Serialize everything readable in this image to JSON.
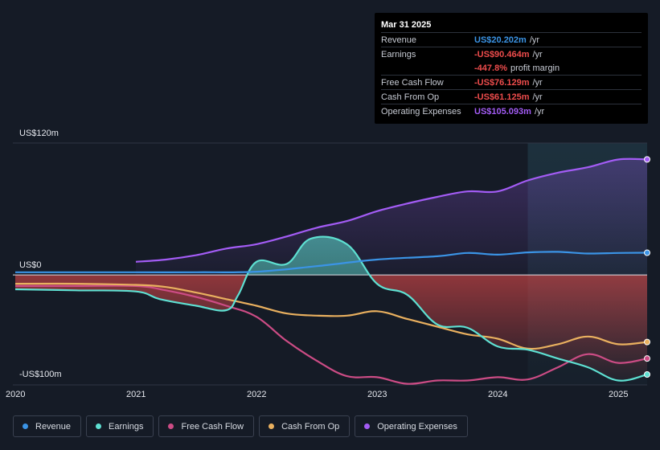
{
  "tooltip": {
    "date": "Mar 31 2025",
    "rows": [
      {
        "label": "Revenue",
        "value": "US$20.202m",
        "unit": "/yr"
      },
      {
        "label": "Earnings",
        "value": "-US$90.464m",
        "unit": "/yr"
      },
      {
        "label": "",
        "value": "-447.8%",
        "unit": "profit margin"
      },
      {
        "label": "Free Cash Flow",
        "value": "-US$76.129m",
        "unit": "/yr"
      },
      {
        "label": "Cash From Op",
        "value": "-US$61.125m",
        "unit": "/yr"
      },
      {
        "label": "Operating Expenses",
        "value": "US$105.093m",
        "unit": "/yr"
      }
    ]
  },
  "colors": {
    "revenue": "#3b94e6",
    "earnings": "#5ee0d2",
    "free_cash_flow": "#cc4c85",
    "cash_from_op": "#e9b05f",
    "operating_expenses": "#a35cf5",
    "negative": "#ee4c4c"
  },
  "chart_data": {
    "type": "line",
    "title": "",
    "xlabel": "",
    "ylabel": "",
    "ylim": [
      -100,
      120
    ],
    "y_tick_labels": [
      "US$120m",
      "US$0",
      "-US$100m"
    ],
    "x_tick_labels": [
      "2020",
      "2021",
      "2022",
      "2023",
      "2024",
      "2025"
    ],
    "x_range": [
      2019.98,
      2025.24
    ],
    "highlight_start": 2024.25,
    "series": [
      {
        "name": "Revenue",
        "key": "revenue",
        "x": [
          2020.0,
          2020.5,
          2021.0,
          2021.5,
          2022.0,
          2022.5,
          2023.0,
          2023.5,
          2023.75,
          2024.0,
          2024.25,
          2024.5,
          2024.75,
          2025.0,
          2025.24
        ],
        "y": [
          2.5,
          2.5,
          2.5,
          2.5,
          3.0,
          8.0,
          14.0,
          17.0,
          20.0,
          18.5,
          20.5,
          21.0,
          19.5,
          20.0,
          20.2
        ]
      },
      {
        "name": "Earnings",
        "key": "earnings",
        "x": [
          2020.0,
          2020.5,
          2021.0,
          2021.2,
          2021.5,
          2021.75,
          2021.85,
          2022.0,
          2022.25,
          2022.45,
          2022.75,
          2023.0,
          2023.25,
          2023.5,
          2023.75,
          2024.0,
          2024.25,
          2024.5,
          2024.75,
          2025.0,
          2025.24
        ],
        "y": [
          -13,
          -14,
          -15,
          -22,
          -28,
          -32,
          -18,
          12,
          10,
          33,
          28,
          -8,
          -18,
          -45,
          -48,
          -65,
          -68,
          -76,
          -84,
          -96,
          -90.5
        ]
      },
      {
        "name": "Free Cash Flow",
        "key": "free_cash_flow",
        "x": [
          2020.0,
          2020.5,
          2021.0,
          2021.25,
          2021.5,
          2021.75,
          2022.0,
          2022.25,
          2022.5,
          2022.75,
          2023.0,
          2023.25,
          2023.5,
          2023.75,
          2024.0,
          2024.25,
          2024.5,
          2024.75,
          2025.0,
          2025.24
        ],
        "y": [
          -10,
          -10,
          -10,
          -14,
          -20,
          -28,
          -38,
          -60,
          -78,
          -92,
          -93,
          -99,
          -96,
          -96,
          -93,
          -95,
          -84,
          -72,
          -80,
          -76
        ]
      },
      {
        "name": "Cash From Op",
        "key": "cash_from_op",
        "x": [
          2020.0,
          2020.5,
          2021.0,
          2021.25,
          2021.5,
          2021.75,
          2022.0,
          2022.25,
          2022.5,
          2022.75,
          2023.0,
          2023.25,
          2023.5,
          2023.75,
          2024.0,
          2024.25,
          2024.5,
          2024.75,
          2025.0,
          2025.24
        ],
        "y": [
          -8,
          -8,
          -9,
          -11,
          -16,
          -22,
          -28,
          -35,
          -37,
          -37,
          -33,
          -40,
          -47,
          -54,
          -58,
          -67,
          -63,
          -56,
          -63,
          -61
        ]
      },
      {
        "name": "Operating Expenses",
        "key": "operating_expenses",
        "x": [
          2021.0,
          2021.25,
          2021.5,
          2021.75,
          2022.0,
          2022.25,
          2022.5,
          2022.75,
          2023.0,
          2023.25,
          2023.5,
          2023.75,
          2024.0,
          2024.25,
          2024.5,
          2024.75,
          2025.0,
          2025.24
        ],
        "y": [
          12,
          14,
          18,
          24,
          28,
          35,
          43,
          49,
          58,
          65,
          71,
          76,
          76,
          86,
          93,
          98,
          105,
          105.1
        ]
      }
    ],
    "legend": [
      "Revenue",
      "Earnings",
      "Free Cash Flow",
      "Cash From Op",
      "Operating Expenses"
    ],
    "legend_position": "bottom"
  }
}
